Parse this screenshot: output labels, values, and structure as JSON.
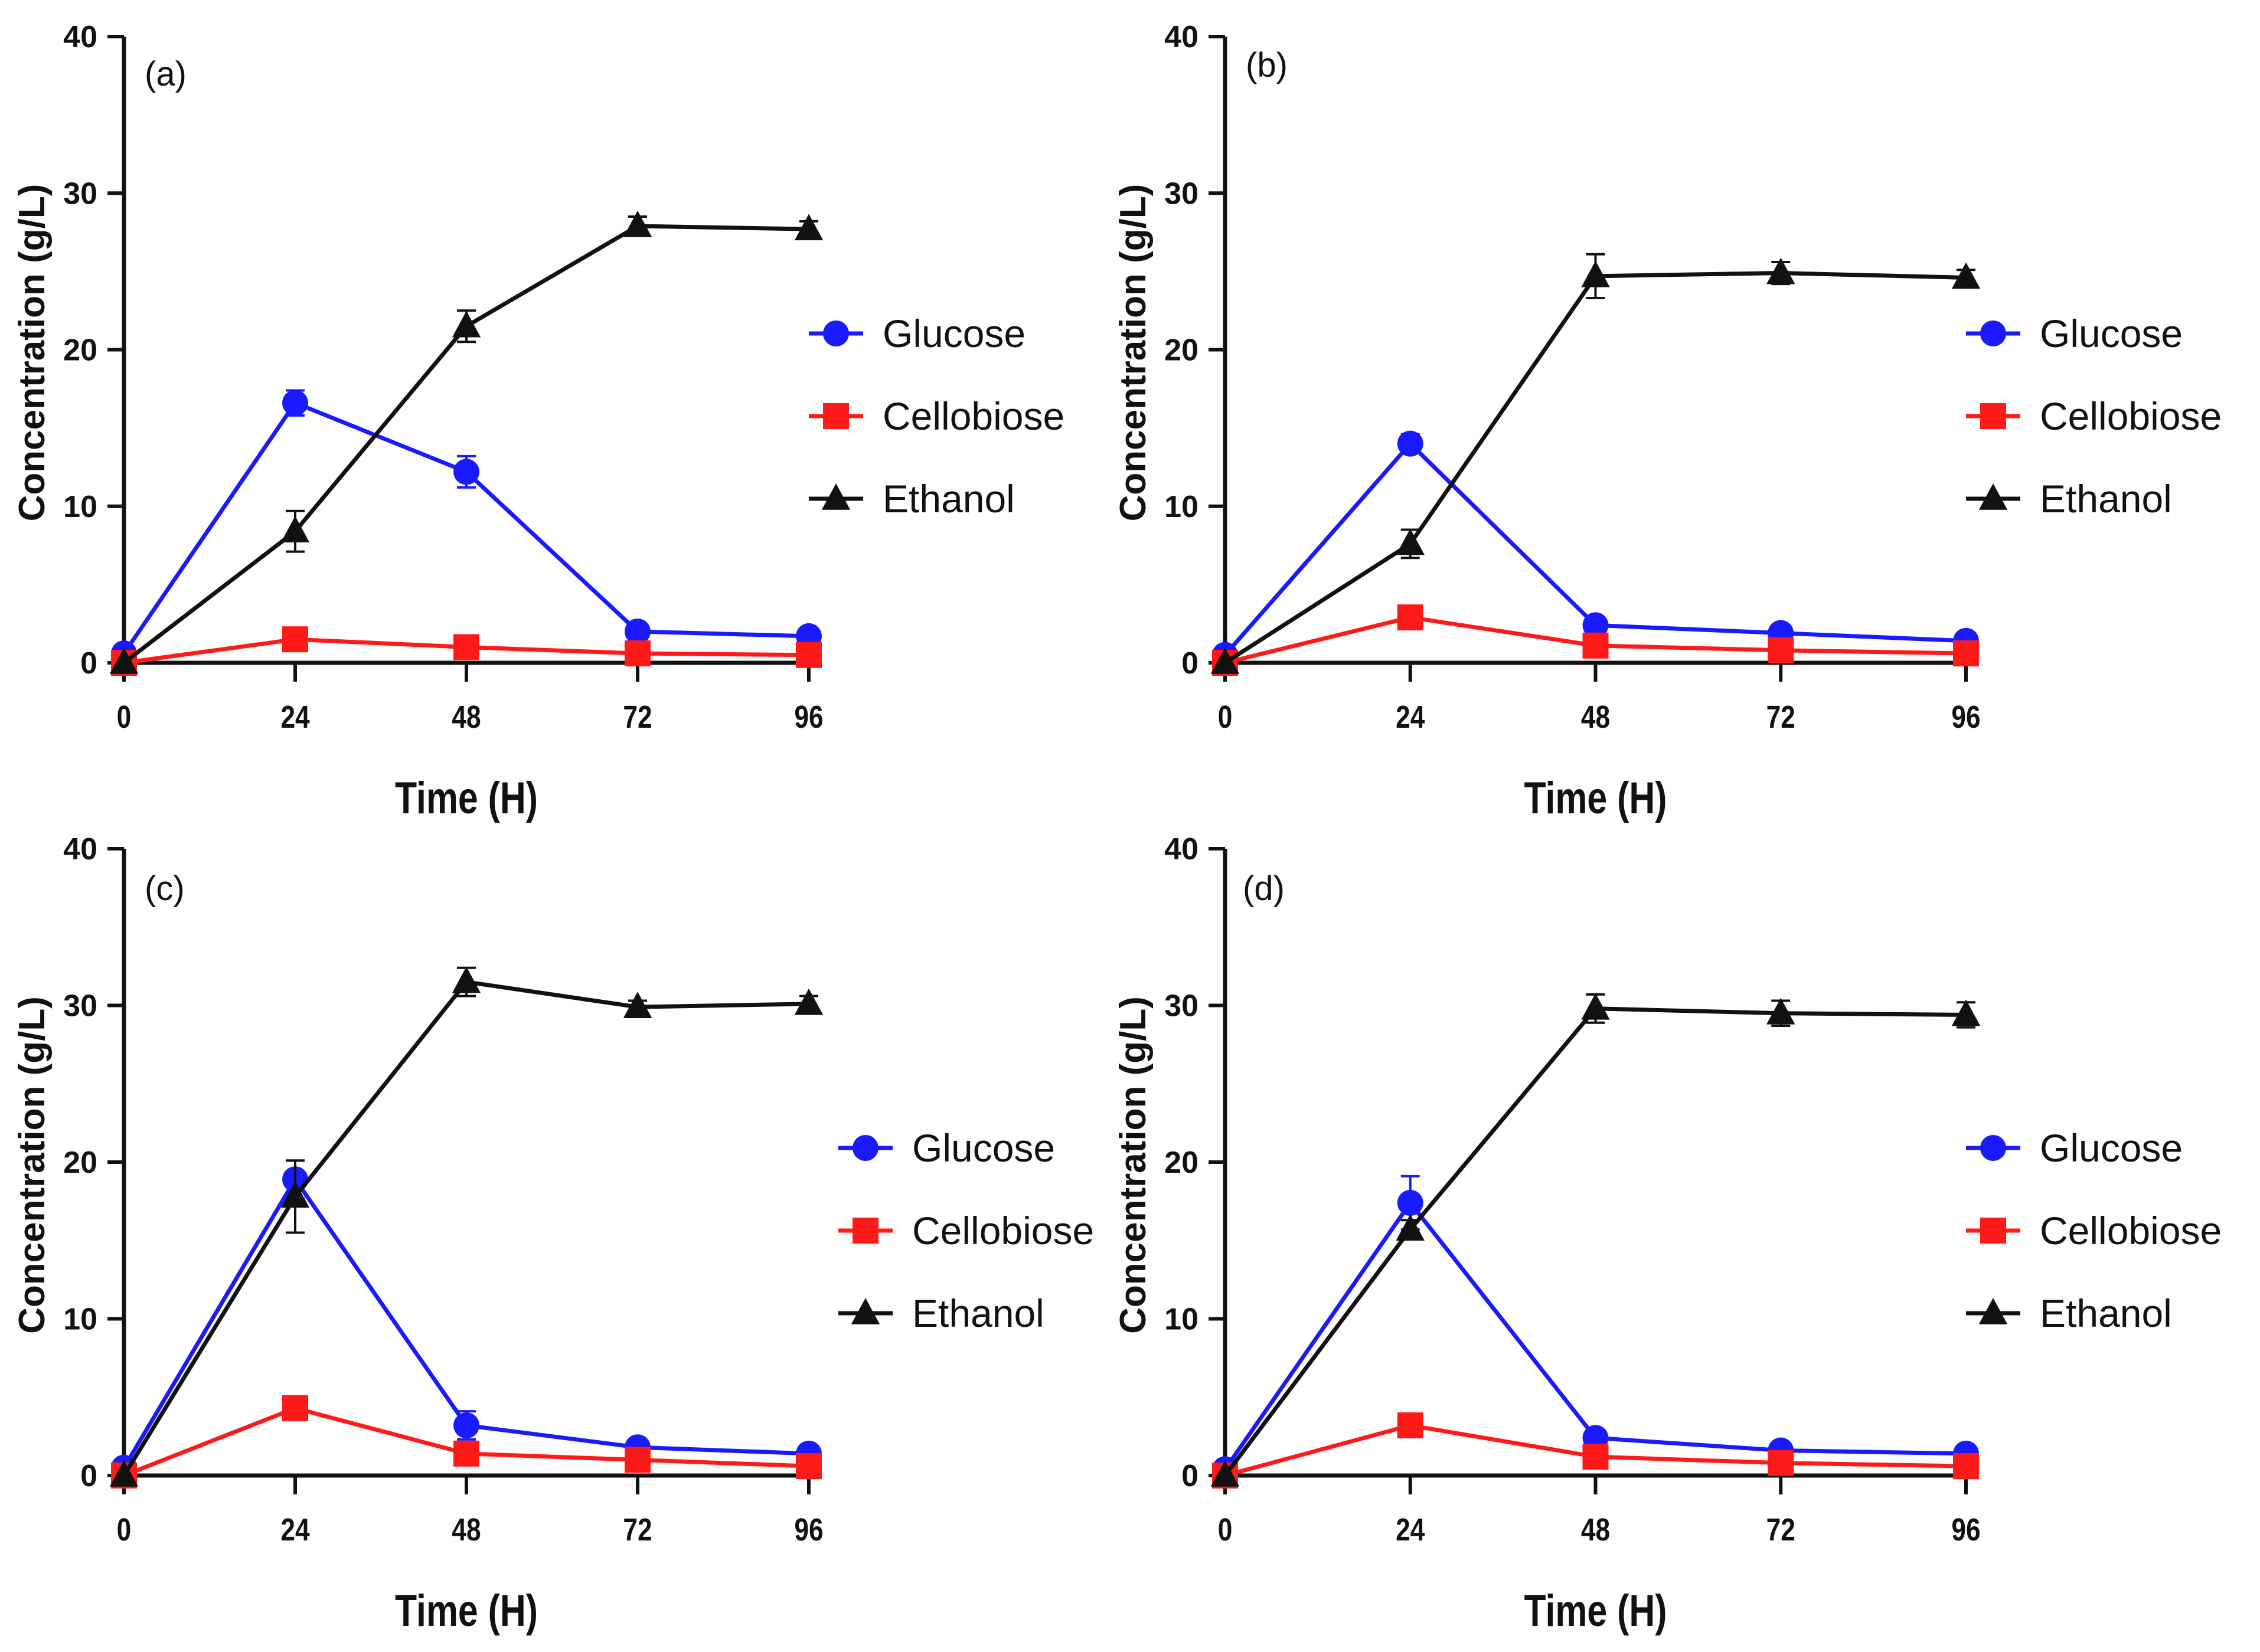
{
  "chart_data": [
    {
      "type": "line",
      "panel_label": "(a)",
      "x": [
        0,
        24,
        48,
        72,
        96
      ],
      "xticks": [
        "0",
        "24",
        "48",
        "72",
        "96"
      ],
      "yticks": [
        "0",
        "10",
        "20",
        "30",
        "40"
      ],
      "xlabel": "Time (H)",
      "ylabel": "Concentration (g/L)",
      "xlim": [
        0,
        96
      ],
      "ylim": [
        0,
        40
      ],
      "legend_position": "right",
      "series": [
        {
          "name": "Glucose",
          "color": "#1a1aff",
          "marker": "circle",
          "values": [
            0.6,
            16.6,
            12.2,
            2.0,
            1.7
          ],
          "errors": [
            0.3,
            0.8,
            1.0,
            0.4,
            0.3
          ]
        },
        {
          "name": "Cellobiose",
          "color": "#ff1a1a",
          "marker": "square",
          "values": [
            0.0,
            1.5,
            1.0,
            0.6,
            0.5
          ],
          "errors": [
            0.1,
            0.3,
            0.2,
            0.1,
            0.1
          ]
        },
        {
          "name": "Ethanol",
          "color": "#111111",
          "marker": "triangle",
          "values": [
            0.0,
            8.4,
            21.5,
            27.9,
            27.7
          ],
          "errors": [
            0.1,
            1.3,
            1.0,
            0.6,
            0.5
          ]
        }
      ]
    },
    {
      "type": "line",
      "panel_label": "(b)",
      "x": [
        0,
        24,
        48,
        72,
        96
      ],
      "xticks": [
        "0",
        "24",
        "48",
        "72",
        "96"
      ],
      "yticks": [
        "0",
        "10",
        "20",
        "30",
        "40"
      ],
      "xlabel": "Time (H)",
      "ylabel": "Concentration (g/L)",
      "xlim": [
        0,
        96
      ],
      "ylim": [
        0,
        40
      ],
      "legend_position": "right",
      "series": [
        {
          "name": "Glucose",
          "color": "#1a1aff",
          "marker": "circle",
          "values": [
            0.5,
            14.0,
            2.4,
            1.9,
            1.4
          ],
          "errors": [
            0.2,
            0.6,
            0.3,
            0.3,
            0.2
          ]
        },
        {
          "name": "Cellobiose",
          "color": "#ff1a1a",
          "marker": "square",
          "values": [
            0.0,
            2.9,
            1.1,
            0.8,
            0.6
          ],
          "errors": [
            0.1,
            0.4,
            0.2,
            0.1,
            0.1
          ]
        },
        {
          "name": "Ethanol",
          "color": "#111111",
          "marker": "triangle",
          "values": [
            0.0,
            7.6,
            24.7,
            24.9,
            24.6
          ],
          "errors": [
            0.1,
            0.9,
            1.4,
            0.7,
            0.5
          ]
        }
      ]
    },
    {
      "type": "line",
      "panel_label": "(c)",
      "x": [
        0,
        24,
        48,
        72,
        96
      ],
      "xticks": [
        "0",
        "24",
        "48",
        "72",
        "96"
      ],
      "yticks": [
        "0",
        "10",
        "20",
        "30",
        "40"
      ],
      "xlabel": "Time (H)",
      "ylabel": "Concentration (g/L)",
      "xlim": [
        0,
        96
      ],
      "ylim": [
        0,
        40
      ],
      "legend_position": "right",
      "series": [
        {
          "name": "Glucose",
          "color": "#1a1aff",
          "marker": "circle",
          "values": [
            0.5,
            18.9,
            3.2,
            1.8,
            1.4
          ],
          "errors": [
            0.2,
            1.2,
            0.9,
            0.3,
            0.2
          ]
        },
        {
          "name": "Cellobiose",
          "color": "#ff1a1a",
          "marker": "square",
          "values": [
            0.0,
            4.3,
            1.4,
            1.0,
            0.6
          ],
          "errors": [
            0.1,
            0.4,
            0.2,
            0.1,
            0.1
          ]
        },
        {
          "name": "Ethanol",
          "color": "#111111",
          "marker": "triangle",
          "values": [
            0.0,
            17.8,
            31.5,
            29.9,
            30.1
          ],
          "errors": [
            0.1,
            2.3,
            0.9,
            0.4,
            0.5
          ]
        }
      ]
    },
    {
      "type": "line",
      "panel_label": "(d)",
      "x": [
        0,
        24,
        48,
        72,
        96
      ],
      "xticks": [
        "0",
        "24",
        "48",
        "72",
        "96"
      ],
      "yticks": [
        "0",
        "10",
        "20",
        "30",
        "40"
      ],
      "xlabel": "Time (H)",
      "ylabel": "Concentration (g/L)",
      "xlim": [
        0,
        96
      ],
      "ylim": [
        0,
        40
      ],
      "legend_position": "right",
      "series": [
        {
          "name": "Glucose",
          "color": "#1a1aff",
          "marker": "circle",
          "values": [
            0.4,
            17.4,
            2.4,
            1.6,
            1.4
          ],
          "errors": [
            0.2,
            1.7,
            0.3,
            0.3,
            0.2
          ]
        },
        {
          "name": "Cellobiose",
          "color": "#ff1a1a",
          "marker": "square",
          "values": [
            0.0,
            3.2,
            1.2,
            0.8,
            0.6
          ],
          "errors": [
            0.1,
            0.3,
            0.2,
            0.1,
            0.1
          ]
        },
        {
          "name": "Ethanol",
          "color": "#111111",
          "marker": "triangle",
          "values": [
            0.0,
            15.7,
            29.8,
            29.5,
            29.4
          ],
          "errors": [
            0.1,
            0.6,
            0.9,
            0.8,
            0.8
          ]
        }
      ]
    }
  ]
}
